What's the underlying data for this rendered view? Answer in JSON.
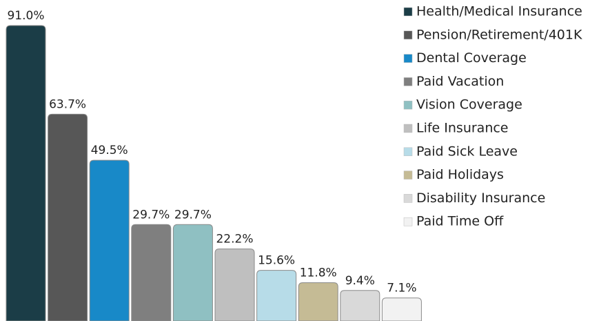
{
  "chart_data": {
    "type": "bar",
    "categories": [
      "Health/Medical Insurance",
      "Pension/Retirement/401K",
      "Dental Coverage",
      "Paid Vacation",
      "Vision Coverage",
      "Life Insurance",
      "Paid Sick Leave",
      "Paid Holidays",
      "Disability Insurance",
      "Paid Time Off"
    ],
    "values": [
      91.0,
      63.7,
      49.5,
      29.7,
      29.7,
      22.2,
      15.6,
      11.8,
      9.4,
      7.1
    ],
    "value_labels": [
      "91.0%",
      "63.7%",
      "49.5%",
      "29.7%",
      "29.7%",
      "22.2%",
      "15.6%",
      "11.8%",
      "9.4%",
      "7.1%"
    ],
    "colors": [
      "#1b3d47",
      "#575757",
      "#1889c8",
      "#7f7f7f",
      "#8fc0c2",
      "#bfbfbf",
      "#b7dce8",
      "#c5bb95",
      "#d9d9d9",
      "#f2f2f2"
    ]
  }
}
